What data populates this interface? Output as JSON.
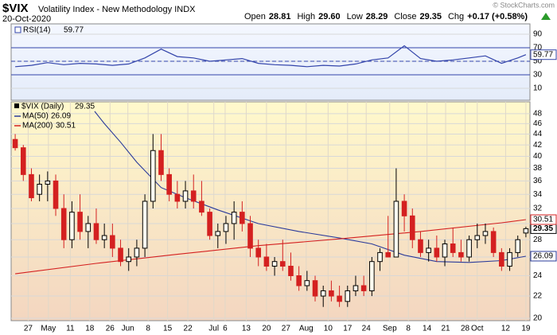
{
  "header": {
    "symbol": "$VIX",
    "name": "Volatility Index - New Methodology INDX",
    "date": "20-Oct-2020",
    "credit": "© StockCharts.com",
    "quote": [
      {
        "label": "Open",
        "value": "28.81"
      },
      {
        "label": "High",
        "value": "29.60"
      },
      {
        "label": "Low",
        "value": "28.29"
      },
      {
        "label": "Close",
        "value": "29.35"
      },
      {
        "label": "Chg",
        "value": "+0.17 (+0.58%)"
      }
    ]
  },
  "chart_data": [
    {
      "type": "line",
      "title": "RSI(14)",
      "series": [
        {
          "name": "RSI(14)",
          "color": "#3344aa",
          "x": [
            0,
            2,
            4,
            6,
            8,
            10,
            12,
            14,
            16,
            18,
            20,
            22,
            24,
            26,
            28,
            30,
            32,
            34,
            36,
            38,
            40,
            42,
            44,
            46,
            48,
            50,
            52,
            54,
            56,
            58,
            60,
            62,
            63
          ],
          "values": [
            42,
            44,
            48,
            45,
            47,
            46,
            44,
            46,
            55,
            68,
            57,
            55,
            50,
            52,
            54,
            47,
            45,
            44,
            42,
            44,
            43,
            46,
            52,
            55,
            73,
            54,
            50,
            52,
            55,
            58,
            47,
            55,
            59.77
          ]
        }
      ],
      "levels": [
        30,
        50,
        70
      ],
      "xlim": [
        -0.5,
        63.5
      ],
      "ylim": [
        -7.6,
        105.3
      ],
      "yticks": [
        10,
        30,
        50,
        70,
        90
      ],
      "grid": true
    },
    {
      "type": "candlestick",
      "series": [
        {
          "name": "$VIX (Daily)",
          "up_color": "#000000",
          "down_color": "#d42020",
          "open": [
            43,
            41.5,
            37,
            34,
            35.5,
            36,
            32,
            28,
            31.5,
            29,
            30,
            28,
            28.5,
            27,
            25.5,
            26,
            27,
            33,
            41,
            37,
            34,
            33,
            34.5,
            33,
            31.5,
            28.5,
            29,
            30,
            31.5,
            30,
            27,
            26,
            25,
            25.5,
            25,
            24,
            23,
            23.5,
            22,
            22.5,
            22,
            21.5,
            22.5,
            23,
            22.5,
            25.5,
            26.5,
            26,
            33,
            31,
            28,
            26.5,
            27,
            26,
            27.5,
            26.5,
            26,
            28,
            28.5,
            29,
            26.5,
            25,
            26.5,
            28.81
          ],
          "high": [
            44,
            42,
            38,
            37,
            37.5,
            37,
            34,
            33,
            34,
            31,
            32,
            30,
            30,
            28,
            27,
            28,
            34,
            44,
            44,
            38,
            36,
            36,
            37,
            36,
            32,
            30,
            31,
            33,
            33,
            31,
            28,
            27.5,
            26,
            28,
            26.5,
            25,
            24.5,
            24,
            23,
            23.5,
            23,
            23,
            24,
            24,
            26,
            27,
            31,
            38,
            34,
            32,
            29,
            28,
            28.5,
            28,
            29.5,
            28,
            28.5,
            30,
            30,
            29.5,
            27,
            27,
            28.5,
            29.6
          ],
          "low": [
            41,
            36,
            33,
            33,
            33,
            31,
            27,
            27,
            28,
            27,
            27.5,
            27,
            26,
            25,
            24.5,
            25,
            26,
            32,
            36,
            33,
            32,
            32,
            32,
            31,
            28,
            27,
            27.5,
            28,
            29,
            26,
            25,
            24.5,
            24,
            24.5,
            23.5,
            22.5,
            22.5,
            21.5,
            21,
            21.5,
            21,
            21,
            22,
            22,
            22,
            24.5,
            26,
            26,
            29,
            27,
            26,
            25.5,
            25.5,
            25,
            26,
            25.5,
            25.5,
            27,
            27.5,
            26,
            24.5,
            24.5,
            26,
            28.29
          ],
          "close": [
            41.5,
            37,
            33.5,
            35.5,
            36,
            32,
            28,
            31.5,
            29,
            30,
            28,
            28.5,
            27,
            25.5,
            26,
            27,
            33,
            41,
            37,
            34,
            33,
            34.5,
            33,
            31.5,
            28.5,
            29,
            30,
            31.5,
            30,
            27,
            26,
            25,
            25.5,
            25,
            24,
            23,
            23.5,
            22,
            22.5,
            22,
            21.5,
            22.5,
            23,
            22.5,
            25.5,
            26.5,
            26,
            33,
            31,
            28,
            26.5,
            27,
            26,
            27.5,
            26.5,
            26,
            28,
            28.5,
            29,
            26.5,
            25,
            26.5,
            28,
            29.35
          ]
        }
      ],
      "overlays": [
        {
          "name": "MA(50)",
          "color": "#2a3a9a",
          "x": [
            9.8,
            11,
            13,
            15,
            18,
            21,
            25,
            30,
            35,
            40,
            44,
            48,
            52,
            56,
            60,
            63
          ],
          "values": [
            48.5,
            46,
            42.5,
            39,
            35,
            33.5,
            31.8,
            30,
            29,
            28.2,
            27.5,
            26.2,
            25.5,
            25.4,
            25.6,
            26.09
          ]
        },
        {
          "name": "MA(200)",
          "color": "#d42020",
          "x": [
            0,
            10,
            20,
            30,
            40,
            50,
            60,
            63
          ],
          "values": [
            24.2,
            25.3,
            26.3,
            27.3,
            28.1,
            29,
            30.1,
            30.51
          ]
        }
      ],
      "log_scale": true,
      "grid": true,
      "xlim": [
        -0.5,
        63.5
      ],
      "ylim": [
        19.8,
        50.5
      ],
      "yticks": [
        20,
        22,
        24,
        26,
        28,
        30,
        32,
        34,
        36,
        38,
        40,
        42,
        44,
        46,
        48
      ],
      "xticks": [
        {
          "value": 1.6,
          "label": "27"
        },
        {
          "value": 4.1,
          "label": "May"
        },
        {
          "value": 6.8,
          "label": "11"
        },
        {
          "value": 9.2,
          "label": "18"
        },
        {
          "value": 11.7,
          "label": "26"
        },
        {
          "value": 13.9,
          "label": "Jun"
        },
        {
          "value": 16.4,
          "label": "8"
        },
        {
          "value": 18.8,
          "label": "15"
        },
        {
          "value": 21.3,
          "label": "22"
        },
        {
          "value": 24.5,
          "label": "Jul"
        },
        {
          "value": 25.9,
          "label": "6"
        },
        {
          "value": 28.5,
          "label": "13"
        },
        {
          "value": 31.0,
          "label": "20"
        },
        {
          "value": 33.4,
          "label": "27"
        },
        {
          "value": 35.9,
          "label": "Aug"
        },
        {
          "value": 38.6,
          "label": "10"
        },
        {
          "value": 41.0,
          "label": "17"
        },
        {
          "value": 43.3,
          "label": "24"
        },
        {
          "value": 46.2,
          "label": "Sep"
        },
        {
          "value": 48.5,
          "label": "8"
        },
        {
          "value": 50.8,
          "label": "14"
        },
        {
          "value": 53.1,
          "label": "21"
        },
        {
          "value": 55.5,
          "label": "28"
        },
        {
          "value": 57.0,
          "label": "Oct"
        },
        {
          "value": 60.5,
          "label": "12"
        },
        {
          "value": 63.0,
          "label": "19"
        }
      ]
    }
  ]
}
